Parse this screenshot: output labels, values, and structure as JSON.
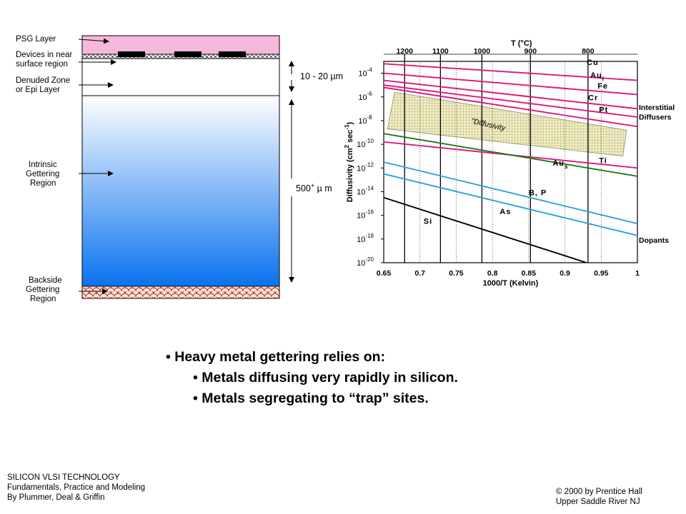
{
  "wafer": {
    "labels": {
      "psg": "PSG Layer",
      "devices_1": "Devices in near",
      "devices_2": "surface region",
      "denuded_1": "Denuded Zone",
      "denuded_2": "or Epi Layer",
      "intrinsic_1": "Intrinsic",
      "intrinsic_2": "Gettering",
      "intrinsic_3": "Region",
      "backside_1": "Backside",
      "backside_2": "Gettering",
      "backside_3": "Region"
    },
    "dims": {
      "top": "10 - 20 µm",
      "bulk_prefix": "500",
      "bulk_sup": "+",
      "bulk_unit": " µ m"
    },
    "colors": {
      "psg": "#f4b8dc",
      "bulk_top": "#ffffff",
      "bulk_bottom": "#0a72ee",
      "backside": "#f6e6dc",
      "backside_pattern": "#c0392b"
    }
  },
  "chart_data": {
    "type": "line",
    "title": "",
    "xlabel": "1000/T (Kelvin)",
    "ylabel_parts": [
      "Diffusivity (cm",
      "2",
      " sec",
      "-1",
      ")"
    ],
    "top_axis_label": "T (°C)",
    "xlim": [
      0.65,
      1.0
    ],
    "ylim_exponent": [
      -20,
      -3
    ],
    "x_ticks": [
      "0.65",
      "0.7",
      "0.75",
      "0.8",
      "0.85",
      "0.9",
      "0.95",
      "1"
    ],
    "x_tick_values": [
      0.65,
      0.7,
      0.75,
      0.8,
      0.85,
      0.9,
      0.95,
      1.0
    ],
    "y_tick_exponents": [
      -4,
      -6,
      -8,
      -10,
      -12,
      -14,
      -16,
      -18,
      -20
    ],
    "y_tick_base": "10",
    "y_tick_sup": [
      "-4",
      "-6",
      "-8",
      "-10",
      "-12",
      "-14",
      "-16",
      "-18",
      "-20"
    ],
    "top_ticks": [
      "1200",
      "1100",
      "1000",
      "900",
      "800"
    ],
    "top_tick_celsius": [
      1200,
      1100,
      1000,
      900,
      800
    ],
    "series": [
      {
        "name": "Cu",
        "color": "#e0157a",
        "x": [
          0.65,
          1.0
        ],
        "log10_y": [
          -3.2,
          -4.6
        ]
      },
      {
        "name": "Au",
        "sub": "i",
        "color": "#e0157a",
        "x": [
          0.65,
          1.0
        ],
        "log10_y": [
          -4.0,
          -5.8
        ]
      },
      {
        "name": "Fe",
        "color": "#e0157a",
        "x": [
          0.65,
          1.0
        ],
        "log10_y": [
          -4.6,
          -7.0
        ]
      },
      {
        "name": "Cr",
        "color": "#e0157a",
        "x": [
          0.65,
          1.0
        ],
        "log10_y": [
          -5.0,
          -7.7
        ]
      },
      {
        "name": "Pt",
        "color": "#e0157a",
        "x": [
          0.65,
          1.0
        ],
        "log10_y": [
          -5.2,
          -8.5
        ]
      },
      {
        "name": "Ti",
        "color": "#e0157a",
        "x": [
          0.65,
          1.0
        ],
        "log10_y": [
          -9.8,
          -12.0
        ]
      },
      {
        "name": "Au",
        "sub": "s",
        "color": "#1a7a1a",
        "x": [
          0.65,
          1.0
        ],
        "log10_y": [
          -9.1,
          -12.7
        ]
      },
      {
        "name": "B, P",
        "color": "#2ba4d8",
        "x": [
          0.65,
          1.0
        ],
        "log10_y": [
          -11.5,
          -16.7
        ]
      },
      {
        "name": "As",
        "color": "#2ba4d8",
        "x": [
          0.65,
          1.0
        ],
        "log10_y": [
          -12.5,
          -17.7
        ]
      },
      {
        "name": "Si",
        "color": "#000000",
        "x": [
          0.65,
          0.93
        ],
        "log10_y": [
          -14.5,
          -20.0
        ]
      }
    ],
    "band": {
      "label": "\"Diffusivity",
      "fill": "#f3eec2",
      "hatch": "#a8a87a"
    },
    "annotations": {
      "interstitial_1": "Interstitial",
      "interstitial_2": "Diffusers",
      "dopants": "Dopants"
    }
  },
  "bullets": {
    "main": "• Heavy metal gettering relies on:",
    "sub1": "• Metals diffusing very rapidly in silicon.",
    "sub2": "• Metals segregating to “trap” sites."
  },
  "footer": {
    "left_1": "SILICON VLSI TECHNOLOGY",
    "left_2": "Fundamentals, Practice and Modeling",
    "left_3": "By Plummer, Deal & Griffin",
    "right_1": "© 2000 by Prentice Hall",
    "right_2": "Upper Saddle River NJ"
  }
}
